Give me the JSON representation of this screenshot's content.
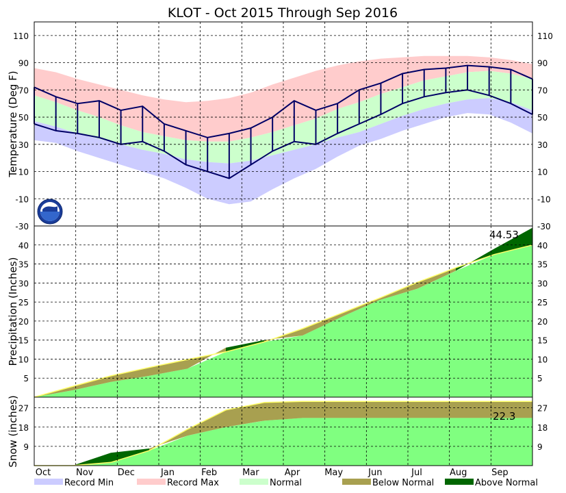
{
  "chart_data": {
    "type": "area",
    "title": "KLOT - Oct 2015 Through Sep 2016",
    "x_months": [
      "Oct",
      "Nov",
      "Dec",
      "Jan",
      "Feb",
      "Mar",
      "Apr",
      "May",
      "Jun",
      "Jul",
      "Aug",
      "Sep"
    ],
    "colors": {
      "record_min": "#ccccff",
      "record_max": "#ffcccc",
      "normal_temp": "#ccffcc",
      "observed_temp": "#000066",
      "precip_normal": "#80ff80",
      "below_normal": "#a8a050",
      "above_normal": "#006600",
      "normal_line": "#ffff66"
    },
    "panels": {
      "temperature": {
        "ylabel": "Temperature (Deg F)",
        "yticks": [
          110,
          90,
          70,
          50,
          30,
          10,
          -10,
          -30
        ],
        "ylim": [
          -30,
          120
        ],
        "series": {
          "record_max": [
            86,
            83,
            78,
            74,
            70,
            66,
            63,
            61,
            62,
            64,
            68,
            74,
            79,
            84,
            88,
            91,
            93,
            94,
            95,
            95,
            95,
            94,
            92,
            89
          ],
          "normal_high": [
            66,
            61,
            55,
            50,
            44,
            39,
            36,
            33,
            32,
            32,
            35,
            39,
            44,
            49,
            56,
            61,
            67,
            72,
            77,
            80,
            83,
            84,
            82,
            78
          ],
          "normal_low": [
            47,
            43,
            38,
            34,
            30,
            26,
            23,
            19,
            17,
            16,
            18,
            22,
            26,
            30,
            35,
            39,
            45,
            51,
            56,
            60,
            63,
            64,
            61,
            55
          ],
          "record_min": [
            33,
            31,
            25,
            20,
            15,
            10,
            5,
            -2,
            -10,
            -14,
            -12,
            -3,
            5,
            12,
            21,
            29,
            34,
            40,
            45,
            50,
            53,
            52,
            46,
            38
          ],
          "observed_high": [
            72,
            65,
            60,
            62,
            55,
            58,
            45,
            40,
            35,
            38,
            42,
            50,
            62,
            55,
            60,
            70,
            75,
            82,
            85,
            86,
            88,
            87,
            85,
            78
          ],
          "observed_low": [
            45,
            40,
            38,
            35,
            30,
            32,
            25,
            15,
            10,
            5,
            15,
            25,
            32,
            30,
            38,
            45,
            52,
            60,
            65,
            68,
            70,
            66,
            60,
            52
          ]
        }
      },
      "precipitation": {
        "ylabel": "Precipitation (Inches)",
        "yticks": [
          5,
          10,
          15,
          20,
          25,
          30,
          35,
          40
        ],
        "ylim": [
          0,
          45
        ],
        "annotation": "44.53",
        "series": {
          "normal_cumulative": [
            0,
            2.8,
            5.6,
            7.8,
            9.9,
            11.9,
            14.5,
            18.0,
            22.0,
            26.0,
            30.2,
            34.0,
            37.5,
            40.0
          ],
          "observed_cumulative": [
            0,
            1.8,
            4.0,
            5.6,
            7.5,
            13.0,
            15.0,
            16.2,
            21.0,
            25.5,
            28.5,
            33.2,
            39.0,
            44.53
          ]
        }
      },
      "snow": {
        "ylabel": "Snow (inches)",
        "yticks": [
          9,
          18,
          27
        ],
        "ylim": [
          0,
          32
        ],
        "annotation": "22.3",
        "series": {
          "normal_cumulative": [
            0,
            0,
            1.5,
            7,
            17,
            26,
            29.5,
            30,
            30,
            30,
            30,
            30,
            30,
            30
          ],
          "observed_cumulative": [
            0,
            0,
            6,
            8,
            14,
            18,
            21,
            22.3,
            22.3,
            22.3,
            22.3,
            22.3,
            22.3,
            22.3
          ]
        }
      }
    },
    "legend": [
      "Record Min",
      "Record Max",
      "Normal",
      "Below Normal",
      "Above Normal"
    ]
  }
}
